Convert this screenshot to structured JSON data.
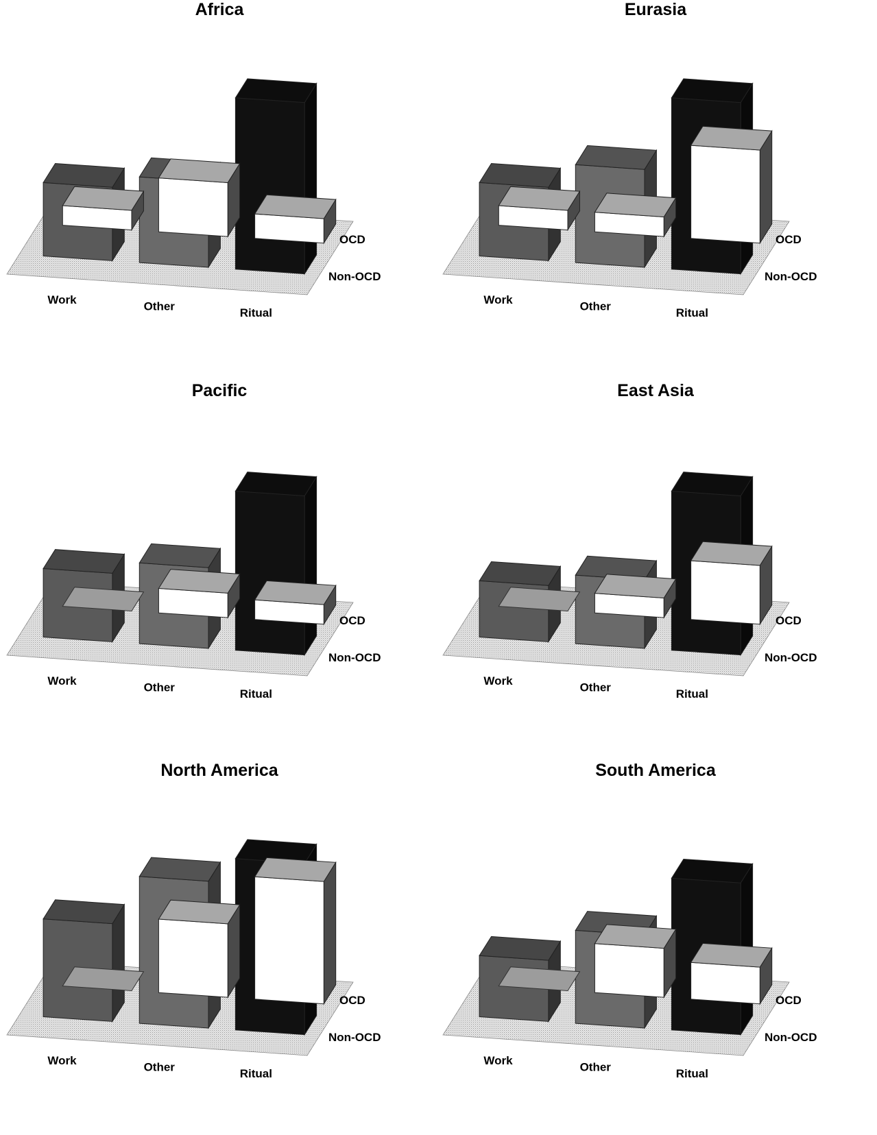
{
  "chart_data": [
    {
      "type": "bar",
      "title": "Africa",
      "categories": [
        "Work",
        "Other",
        "Ritual"
      ],
      "series": [
        {
          "name": "OCD",
          "values": [
            3.0,
            3.5,
            7.0
          ]
        },
        {
          "name": "Non-OCD",
          "values": [
            0.8,
            2.2,
            1.0
          ]
        }
      ],
      "colors": {
        "OCD": [
          "#5a5a5a",
          "#6a6a6a",
          "#111111"
        ],
        "Non-OCD": "#ffffff"
      }
    },
    {
      "type": "bar",
      "title": "Eurasia",
      "categories": [
        "Work",
        "Other",
        "Ritual"
      ],
      "series": [
        {
          "name": "OCD",
          "values": [
            3.0,
            4.0,
            7.0
          ]
        },
        {
          "name": "Non-OCD",
          "values": [
            0.8,
            0.8,
            3.8
          ]
        }
      ],
      "colors": {
        "OCD": [
          "#5a5a5a",
          "#6a6a6a",
          "#111111"
        ],
        "Non-OCD": "#ffffff"
      }
    },
    {
      "type": "bar",
      "title": "Pacific",
      "categories": [
        "Work",
        "Other",
        "Ritual"
      ],
      "series": [
        {
          "name": "OCD",
          "values": [
            2.8,
            3.3,
            6.5
          ]
        },
        {
          "name": "Non-OCD",
          "values": [
            0.0,
            1.0,
            0.8
          ]
        }
      ],
      "colors": {
        "OCD": [
          "#5a5a5a",
          "#6a6a6a",
          "#111111"
        ],
        "Non-OCD": "#ffffff"
      }
    },
    {
      "type": "bar",
      "title": "East Asia",
      "categories": [
        "Work",
        "Other",
        "Ritual"
      ],
      "series": [
        {
          "name": "OCD",
          "values": [
            2.3,
            2.8,
            6.5
          ]
        },
        {
          "name": "Non-OCD",
          "values": [
            0.0,
            0.8,
            2.4
          ]
        }
      ],
      "colors": {
        "OCD": [
          "#5a5a5a",
          "#6a6a6a",
          "#111111"
        ],
        "Non-OCD": "#ffffff"
      }
    },
    {
      "type": "bar",
      "title": "North America",
      "categories": [
        "Work",
        "Other",
        "Ritual"
      ],
      "series": [
        {
          "name": "OCD",
          "values": [
            4.0,
            6.0,
            7.0
          ]
        },
        {
          "name": "Non-OCD",
          "values": [
            0.0,
            3.0,
            5.0
          ]
        }
      ],
      "colors": {
        "OCD": [
          "#5a5a5a",
          "#6a6a6a",
          "#111111"
        ],
        "Non-OCD": "#ffffff"
      }
    },
    {
      "type": "bar",
      "title": "South America",
      "categories": [
        "Work",
        "Other",
        "Ritual"
      ],
      "series": [
        {
          "name": "OCD",
          "values": [
            2.5,
            3.8,
            6.2
          ]
        },
        {
          "name": "Non-OCD",
          "values": [
            0.0,
            2.0,
            1.5
          ]
        }
      ],
      "colors": {
        "OCD": [
          "#5a5a5a",
          "#6a6a6a",
          "#111111"
        ],
        "Non-OCD": "#ffffff"
      }
    }
  ]
}
